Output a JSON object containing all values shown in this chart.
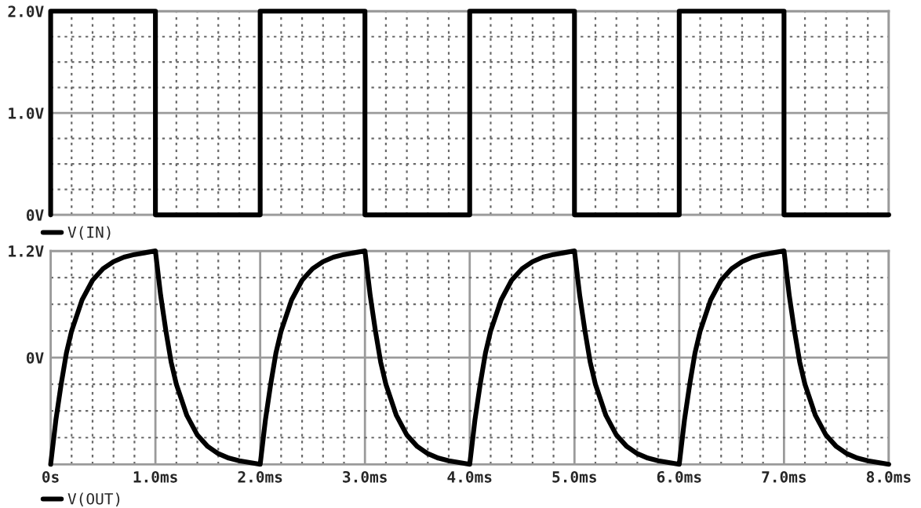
{
  "chart_data": [
    {
      "type": "line",
      "x": [
        0,
        0,
        1,
        1,
        2,
        2,
        3,
        3,
        4,
        4,
        5,
        5,
        6,
        6,
        7,
        7,
        8
      ],
      "series": [
        {
          "name": "V(IN)",
          "color": "#000000",
          "values": [
            0,
            2,
            2,
            0,
            0,
            2,
            2,
            0,
            0,
            2,
            2,
            0,
            0,
            2,
            2,
            0,
            0
          ]
        }
      ],
      "xlim": [
        0,
        8
      ],
      "ylim": [
        0,
        2
      ],
      "yticks": [
        {
          "value": 0,
          "label": "0V"
        },
        {
          "value": 1,
          "label": "1.0V"
        },
        {
          "value": 2,
          "label": "2.0V"
        }
      ],
      "tick_labels": "y",
      "grid": true,
      "legend": "bottom left"
    },
    {
      "type": "line",
      "x": [
        0,
        0.05,
        0.1,
        0.15,
        0.2,
        0.3,
        0.4,
        0.5,
        0.6,
        0.7,
        0.8,
        0.9,
        1.0,
        1.05,
        1.1,
        1.15,
        1.2,
        1.3,
        1.4,
        1.5,
        1.6,
        1.7,
        1.8,
        1.9,
        2.0,
        2.05,
        2.1,
        2.15,
        2.2,
        2.3,
        2.4,
        2.5,
        2.6,
        2.7,
        2.8,
        2.9,
        3.0,
        3.05,
        3.1,
        3.15,
        3.2,
        3.3,
        3.4,
        3.5,
        3.6,
        3.7,
        3.8,
        3.9,
        4.0,
        4.05,
        4.1,
        4.15,
        4.2,
        4.3,
        4.4,
        4.5,
        4.6,
        4.7,
        4.8,
        4.9,
        5.0,
        5.05,
        5.1,
        5.15,
        5.2,
        5.3,
        5.4,
        5.5,
        5.6,
        5.7,
        5.8,
        5.9,
        6.0,
        6.05,
        6.1,
        6.15,
        6.2,
        6.3,
        6.4,
        6.5,
        6.6,
        6.7,
        6.8,
        6.9,
        7.0,
        7.05,
        7.1,
        7.15,
        7.2,
        7.3,
        7.4,
        7.5,
        7.6,
        7.7,
        7.8,
        7.9,
        8.0
      ],
      "series": [
        {
          "name": "V(OUT)",
          "color": "#000000",
          "values": [
            -1.2,
            -0.7,
            -0.3,
            0.05,
            0.3,
            0.65,
            0.87,
            1.0,
            1.08,
            1.13,
            1.16,
            1.18,
            1.2,
            0.7,
            0.3,
            -0.05,
            -0.3,
            -0.65,
            -0.87,
            -1.0,
            -1.08,
            -1.13,
            -1.16,
            -1.18,
            -1.2,
            -0.7,
            -0.3,
            0.05,
            0.3,
            0.65,
            0.87,
            1.0,
            1.08,
            1.13,
            1.16,
            1.18,
            1.2,
            0.7,
            0.3,
            -0.05,
            -0.3,
            -0.65,
            -0.87,
            -1.0,
            -1.08,
            -1.13,
            -1.16,
            -1.18,
            -1.2,
            -0.7,
            -0.3,
            0.05,
            0.3,
            0.65,
            0.87,
            1.0,
            1.08,
            1.13,
            1.16,
            1.18,
            1.2,
            0.7,
            0.3,
            -0.05,
            -0.3,
            -0.65,
            -0.87,
            -1.0,
            -1.08,
            -1.13,
            -1.16,
            -1.18,
            -1.2,
            -0.7,
            -0.3,
            0.05,
            0.3,
            0.65,
            0.87,
            1.0,
            1.08,
            1.13,
            1.16,
            1.18,
            1.2,
            0.7,
            0.3,
            -0.05,
            -0.3,
            -0.65,
            -0.87,
            -1.0,
            -1.08,
            -1.13,
            -1.16,
            -1.18,
            -1.2
          ]
        }
      ],
      "xlim": [
        0,
        8
      ],
      "ylim": [
        -1.2,
        1.2
      ],
      "xticks": [
        {
          "value": 0,
          "label": "0s"
        },
        {
          "value": 1,
          "label": "1.0ms"
        },
        {
          "value": 2,
          "label": "2.0ms"
        },
        {
          "value": 3,
          "label": "3.0ms"
        },
        {
          "value": 4,
          "label": "4.0ms"
        },
        {
          "value": 5,
          "label": "5.0ms"
        },
        {
          "value": 6,
          "label": "6.0ms"
        },
        {
          "value": 7,
          "label": "7.0ms"
        },
        {
          "value": 8,
          "label": "8.0ms"
        }
      ],
      "yticks": [
        {
          "value": -1.2,
          "label": null
        },
        {
          "value": 0,
          "label": "0V"
        },
        {
          "value": 1.2,
          "label": "1.2V"
        }
      ],
      "grid": true,
      "legend": "bottom left"
    }
  ]
}
